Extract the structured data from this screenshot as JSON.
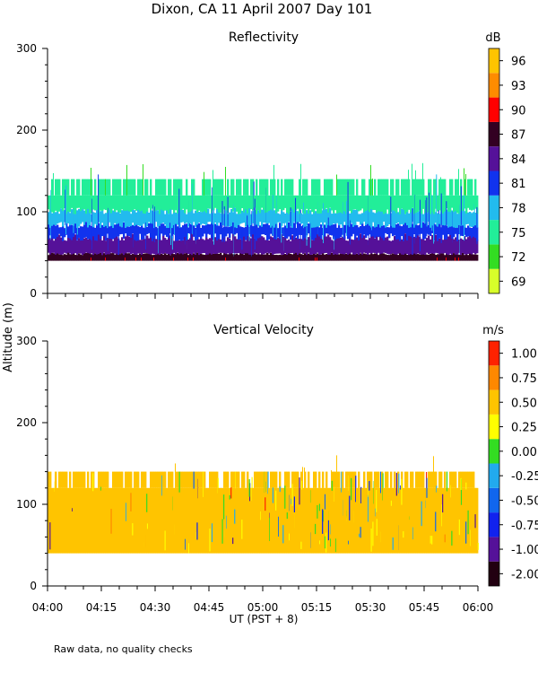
{
  "title": "Dixon, CA 11 April 2007  Day 101",
  "footnote": "Raw data, no quality checks",
  "shared_ylabel": "Altitude (m)",
  "shared_xlabel": "UT  (PST + 8)",
  "colors": {
    "reflectivity_scale": [
      "#d8ff2a",
      "#33dd22",
      "#22ee99",
      "#22bbee",
      "#1133ee",
      "#551199",
      "#330022",
      "#ff0000",
      "#ff8c00",
      "#ffc400"
    ],
    "velocity_scale": [
      "#220011",
      "#551199",
      "#1122ee",
      "#1166ee",
      "#22aaee",
      "#33dd22",
      "#ffff00",
      "#ffc400",
      "#ff8800",
      "#ff2200"
    ],
    "velocity_background": "#ffc400"
  },
  "chart_data": [
    {
      "type": "heatmap",
      "title": "Reflectivity",
      "xlabel": "",
      "ylabel": "",
      "x_ticks": [
        "04:00",
        "04:15",
        "04:30",
        "04:45",
        "05:00",
        "05:15",
        "05:30",
        "05:45",
        "06:00"
      ],
      "y_ticks": [
        "0",
        "100",
        "200",
        "300"
      ],
      "ylim": [
        0,
        300
      ],
      "x_range": [
        "04:00",
        "06:00"
      ],
      "data_altitude_range_m": [
        40,
        160
      ],
      "colorbar": {
        "unit": "dB",
        "labels": [
          "96",
          "93",
          "90",
          "87",
          "84",
          "81",
          "78",
          "75",
          "72",
          "69"
        ],
        "levels": [
          69,
          72,
          75,
          78,
          81,
          84,
          87,
          90,
          93,
          96
        ]
      },
      "layers_m": [
        {
          "from": 40,
          "to": 48,
          "level": 87
        },
        {
          "from": 48,
          "to": 68,
          "level": 84
        },
        {
          "from": 68,
          "to": 85,
          "level": 81
        },
        {
          "from": 85,
          "to": 100,
          "level": 78
        },
        {
          "from": 100,
          "to": 120,
          "level": 75
        },
        {
          "from": 120,
          "to": 140,
          "level": 75
        }
      ]
    },
    {
      "type": "heatmap",
      "title": "Vertical Velocity",
      "xlabel": "UT  (PST + 8)",
      "ylabel": "",
      "x_ticks": [
        "04:00",
        "04:15",
        "04:30",
        "04:45",
        "05:00",
        "05:15",
        "05:30",
        "05:45",
        "06:00"
      ],
      "y_ticks": [
        "0",
        "100",
        "200",
        "300"
      ],
      "ylim": [
        0,
        300
      ],
      "x_range": [
        "04:00",
        "06:00"
      ],
      "data_altitude_range_m": [
        40,
        160
      ],
      "colorbar": {
        "unit": "m/s",
        "labels": [
          "1.00",
          "0.75",
          "0.50",
          "0.25",
          "0.00",
          "-0.25",
          "-0.50",
          "-0.75",
          "-1.00",
          "-2.00"
        ],
        "levels": [
          -2.0,
          -1.0,
          -0.75,
          -0.5,
          -0.25,
          0.0,
          0.25,
          0.5,
          0.75,
          1.0
        ]
      }
    }
  ]
}
